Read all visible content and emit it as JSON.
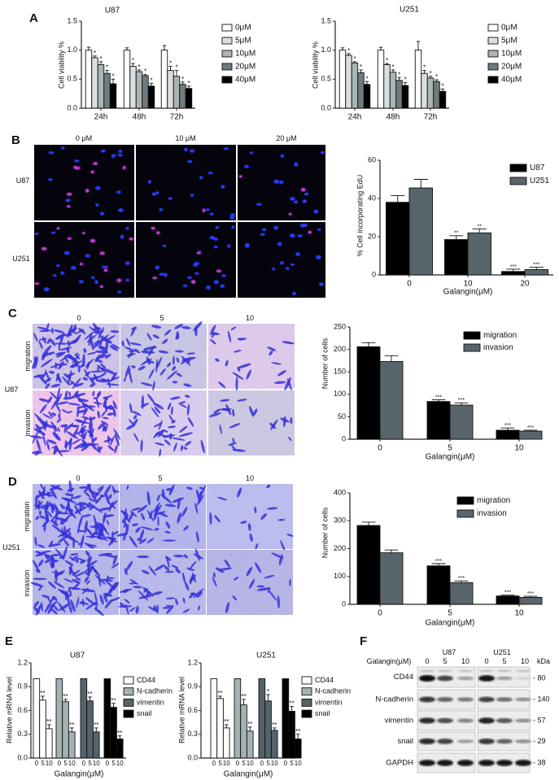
{
  "panels": {
    "A": "A",
    "B": "B",
    "C": "C",
    "D": "D",
    "E": "E",
    "F": "F"
  },
  "colors": {
    "dose_0": "#ffffff",
    "dose_5": "#d9dede",
    "dose_10": "#a9b4b6",
    "dose_20": "#6f7b7e",
    "dose_40": "#000000",
    "black": "#000000",
    "slate": "#58656a",
    "ncad": "#a5b2b5",
    "vim": "#56636a"
  },
  "images": {
    "B": {
      "columns": [
        "0 μM",
        "10 μM",
        "20 μM"
      ],
      "rows": [
        "U87",
        "U251"
      ]
    },
    "C": {
      "columns": [
        "0",
        "5",
        "10"
      ],
      "rows": [
        "migration",
        "invasion"
      ],
      "cell_line": "U87"
    },
    "D": {
      "columns": [
        "0",
        "5",
        "10"
      ],
      "rows": [
        "migration",
        "invasion"
      ],
      "cell_line": "U251"
    }
  },
  "chart_data": [
    {
      "id": "A_U87",
      "type": "bar",
      "title": "U87",
      "ylabel": "Cell viability %",
      "ylim": [
        0,
        1.5
      ],
      "yticks": [
        "0.0",
        "0.5",
        "1.0",
        "1.5"
      ],
      "categories": [
        "24h",
        "48h",
        "72h"
      ],
      "legend_placement": "right",
      "series": [
        {
          "name": "0μM",
          "color": "#ffffff",
          "values": [
            1.0,
            1.0,
            1.0
          ],
          "errors": [
            0.05,
            0.04,
            0.08
          ],
          "marks": [
            "",
            "",
            ""
          ]
        },
        {
          "name": "5μM",
          "color": "#d9dede",
          "values": [
            0.87,
            0.72,
            0.65
          ],
          "errors": [
            0.03,
            0.05,
            0.07
          ],
          "marks": [
            "*",
            "*",
            "*"
          ]
        },
        {
          "name": "10μM",
          "color": "#a9b4b6",
          "values": [
            0.75,
            0.63,
            0.55
          ],
          "errors": [
            0.05,
            0.03,
            0.1
          ],
          "marks": [
            "*",
            "*",
            "*"
          ]
        },
        {
          "name": "20μM",
          "color": "#6f7b7e",
          "values": [
            0.6,
            0.56,
            0.41
          ],
          "errors": [
            0.05,
            0.02,
            0.04
          ],
          "marks": [
            "*",
            "*",
            "*"
          ]
        },
        {
          "name": "40μM",
          "color": "#000000",
          "values": [
            0.42,
            0.38,
            0.34
          ],
          "errors": [
            0.08,
            0.05,
            0.04
          ],
          "marks": [
            "*",
            "*",
            "*"
          ]
        }
      ]
    },
    {
      "id": "A_U251",
      "type": "bar",
      "title": "U251",
      "ylabel": "Cell viability %",
      "ylim": [
        0,
        1.5
      ],
      "yticks": [
        "0.0",
        "0.5",
        "1.0",
        "1.5"
      ],
      "categories": [
        "24h",
        "48h",
        "72h"
      ],
      "legend_placement": "right",
      "series": [
        {
          "name": "0μM",
          "color": "#ffffff",
          "values": [
            1.0,
            1.0,
            1.0
          ],
          "errors": [
            0.04,
            0.05,
            0.15
          ],
          "marks": [
            "",
            "",
            ""
          ]
        },
        {
          "name": "5μM",
          "color": "#d9dede",
          "values": [
            0.91,
            0.75,
            0.6
          ],
          "errors": [
            0.03,
            0.02,
            0.05
          ],
          "marks": [
            "*",
            "*",
            "*"
          ]
        },
        {
          "name": "10μM",
          "color": "#a9b4b6",
          "values": [
            0.78,
            0.62,
            0.52
          ],
          "errors": [
            0.02,
            0.04,
            0.03
          ],
          "marks": [
            "*",
            "*",
            "*"
          ]
        },
        {
          "name": "20μM",
          "color": "#6f7b7e",
          "values": [
            0.61,
            0.48,
            0.46
          ],
          "errors": [
            0.05,
            0.05,
            0.03
          ],
          "marks": [
            "*",
            "*",
            "*"
          ]
        },
        {
          "name": "40μM",
          "color": "#000000",
          "values": [
            0.41,
            0.39,
            0.29
          ],
          "errors": [
            0.05,
            0.05,
            0.04
          ],
          "marks": [
            "*",
            "*",
            "*"
          ]
        }
      ]
    },
    {
      "id": "B",
      "type": "bar",
      "ylabel": "% Cell incorporating EdU",
      "xlabel": "Galangin(μM)",
      "ylim": [
        0,
        60
      ],
      "yticks": [
        "0",
        "20",
        "40",
        "60"
      ],
      "categories": [
        "0",
        "10",
        "20"
      ],
      "legend_placement": "top-right",
      "series": [
        {
          "name": "U87",
          "color": "#000000",
          "values": [
            38,
            18.5,
            1.8
          ],
          "errors": [
            3.5,
            2,
            1.2
          ],
          "marks": [
            "",
            "**",
            "***"
          ]
        },
        {
          "name": "U251",
          "color": "#58656a",
          "values": [
            45.5,
            22,
            2.8
          ],
          "errors": [
            4.5,
            2,
            1.2
          ],
          "marks": [
            "",
            "**",
            "***"
          ]
        }
      ]
    },
    {
      "id": "C",
      "type": "bar",
      "ylabel": "Number of cells",
      "xlabel": "Galangin(μM)",
      "ylim": [
        0,
        250
      ],
      "yticks": [
        "0",
        "50",
        "100",
        "150",
        "200",
        "250"
      ],
      "categories": [
        "0",
        "5",
        "10"
      ],
      "legend_placement": "top-right",
      "series": [
        {
          "name": "migration",
          "color": "#000000",
          "values": [
            206,
            84,
            20
          ],
          "errors": [
            9,
            4,
            5
          ],
          "marks": [
            "",
            "***",
            "***"
          ]
        },
        {
          "name": "invasion",
          "color": "#58656a",
          "values": [
            173,
            76,
            18
          ],
          "errors": [
            13,
            5,
            2
          ],
          "marks": [
            "",
            "***",
            "***"
          ]
        }
      ]
    },
    {
      "id": "D",
      "type": "bar",
      "ylabel": "Number of cells",
      "xlabel": "Galangin(μM)",
      "ylim": [
        0,
        400
      ],
      "yticks": [
        "0",
        "100",
        "200",
        "300",
        "400"
      ],
      "categories": [
        "0",
        "5",
        "10"
      ],
      "legend_placement": "top-right",
      "series": [
        {
          "name": "migration",
          "color": "#000000",
          "values": [
            283,
            138,
            30
          ],
          "errors": [
            12,
            8,
            3
          ],
          "marks": [
            "",
            "***",
            "***"
          ]
        },
        {
          "name": "invasion",
          "color": "#58656a",
          "values": [
            185,
            78,
            25
          ],
          "errors": [
            10,
            6,
            4
          ],
          "marks": [
            "",
            "***",
            "***"
          ]
        }
      ]
    },
    {
      "id": "E_U87",
      "type": "bar",
      "title": "U87",
      "ylabel": "Relative mRNA level",
      "xlabel": "Galangin(μM)",
      "ylim": [
        0,
        1.2
      ],
      "yticks": [
        "0.0",
        "0.3",
        "0.6",
        "0.9",
        "1.2"
      ],
      "doses": [
        "0",
        "5",
        "10"
      ],
      "legend_placement": "right",
      "series": [
        {
          "name": "CD44",
          "color": "#ffffff",
          "values": [
            1.0,
            0.73,
            0.37
          ],
          "errors": [
            0,
            0.05,
            0.05
          ],
          "marks": [
            "",
            "**",
            "**"
          ]
        },
        {
          "name": "N-cadherin",
          "color": "#a5b2b5",
          "values": [
            1.0,
            0.71,
            0.33
          ],
          "errors": [
            0,
            0.03,
            0.05
          ],
          "marks": [
            "",
            "**",
            "**"
          ]
        },
        {
          "name": "vimentin",
          "color": "#56636a",
          "values": [
            1.0,
            0.72,
            0.33
          ],
          "errors": [
            0,
            0.05,
            0.05
          ],
          "marks": [
            "",
            "**",
            "**"
          ]
        },
        {
          "name": "snail",
          "color": "#000000",
          "values": [
            1.0,
            0.64,
            0.24
          ],
          "errors": [
            0,
            0.05,
            0.04
          ],
          "marks": [
            "",
            "**",
            "**"
          ]
        }
      ]
    },
    {
      "id": "E_U251",
      "type": "bar",
      "title": "U251",
      "ylabel": "Relative mRNA level",
      "xlabel": "Galangin(μM)",
      "ylim": [
        0,
        1.2
      ],
      "yticks": [
        "0.0",
        "0.3",
        "0.6",
        "0.9",
        "1.2"
      ],
      "doses": [
        "0",
        "5",
        "10"
      ],
      "legend_placement": "right",
      "series": [
        {
          "name": "CD44",
          "color": "#ffffff",
          "values": [
            1.0,
            0.75,
            0.38
          ],
          "errors": [
            0,
            0.03,
            0.04
          ],
          "marks": [
            "",
            "**",
            "**"
          ]
        },
        {
          "name": "N-cadherin",
          "color": "#a5b2b5",
          "values": [
            1.0,
            0.67,
            0.34
          ],
          "errors": [
            0,
            0.07,
            0.05
          ],
          "marks": [
            "",
            "**",
            "**"
          ]
        },
        {
          "name": "vimentin",
          "color": "#56636a",
          "values": [
            1.0,
            0.72,
            0.35
          ],
          "errors": [
            0,
            0.08,
            0.03
          ],
          "marks": [
            "",
            "*",
            "**"
          ]
        },
        {
          "name": "snail",
          "color": "#000000",
          "values": [
            1.0,
            0.59,
            0.24
          ],
          "errors": [
            0,
            0.06,
            0.06
          ],
          "marks": [
            "",
            "**",
            "**"
          ]
        }
      ]
    }
  ],
  "blot": {
    "groups": [
      "U87",
      "U251"
    ],
    "treatment_label": "Galangin(μM)",
    "lanes": [
      "0",
      "5",
      "10"
    ],
    "unit": "kDa",
    "rows": [
      {
        "name": "CD44",
        "kda": "80",
        "intensity": [
          1.0,
          0.75,
          0.35,
          0.95,
          0.35,
          0.12
        ]
      },
      {
        "name": "N-cadherin",
        "kda": "140",
        "intensity": [
          0.8,
          0.6,
          0.5,
          0.75,
          0.55,
          0.4
        ]
      },
      {
        "name": "vimentin",
        "kda": "57",
        "intensity": [
          0.85,
          0.7,
          0.45,
          0.9,
          0.65,
          0.4
        ]
      },
      {
        "name": "snail",
        "kda": "29",
        "intensity": [
          0.85,
          0.75,
          0.35,
          0.8,
          0.6,
          0.4
        ]
      },
      {
        "name": "GAPDH",
        "kda": "38",
        "intensity": [
          0.95,
          0.95,
          0.95,
          0.95,
          0.95,
          0.95
        ]
      }
    ]
  }
}
